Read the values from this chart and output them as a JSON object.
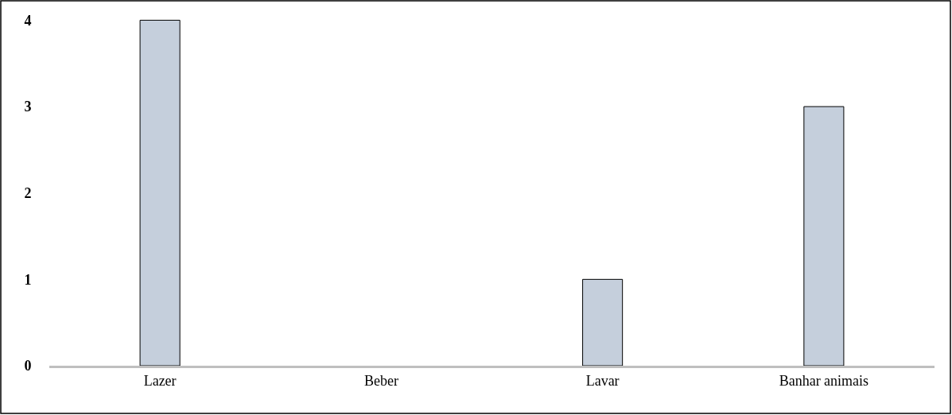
{
  "chart_data": {
    "type": "bar",
    "categories": [
      "Lazer",
      "Beber",
      "Lavar",
      "Banhar animais"
    ],
    "values": [
      4,
      0,
      1,
      3
    ],
    "color": "#c5cfdc",
    "ylim": [
      0,
      4.05
    ],
    "yticks": [
      0,
      1,
      2,
      3,
      4
    ]
  }
}
